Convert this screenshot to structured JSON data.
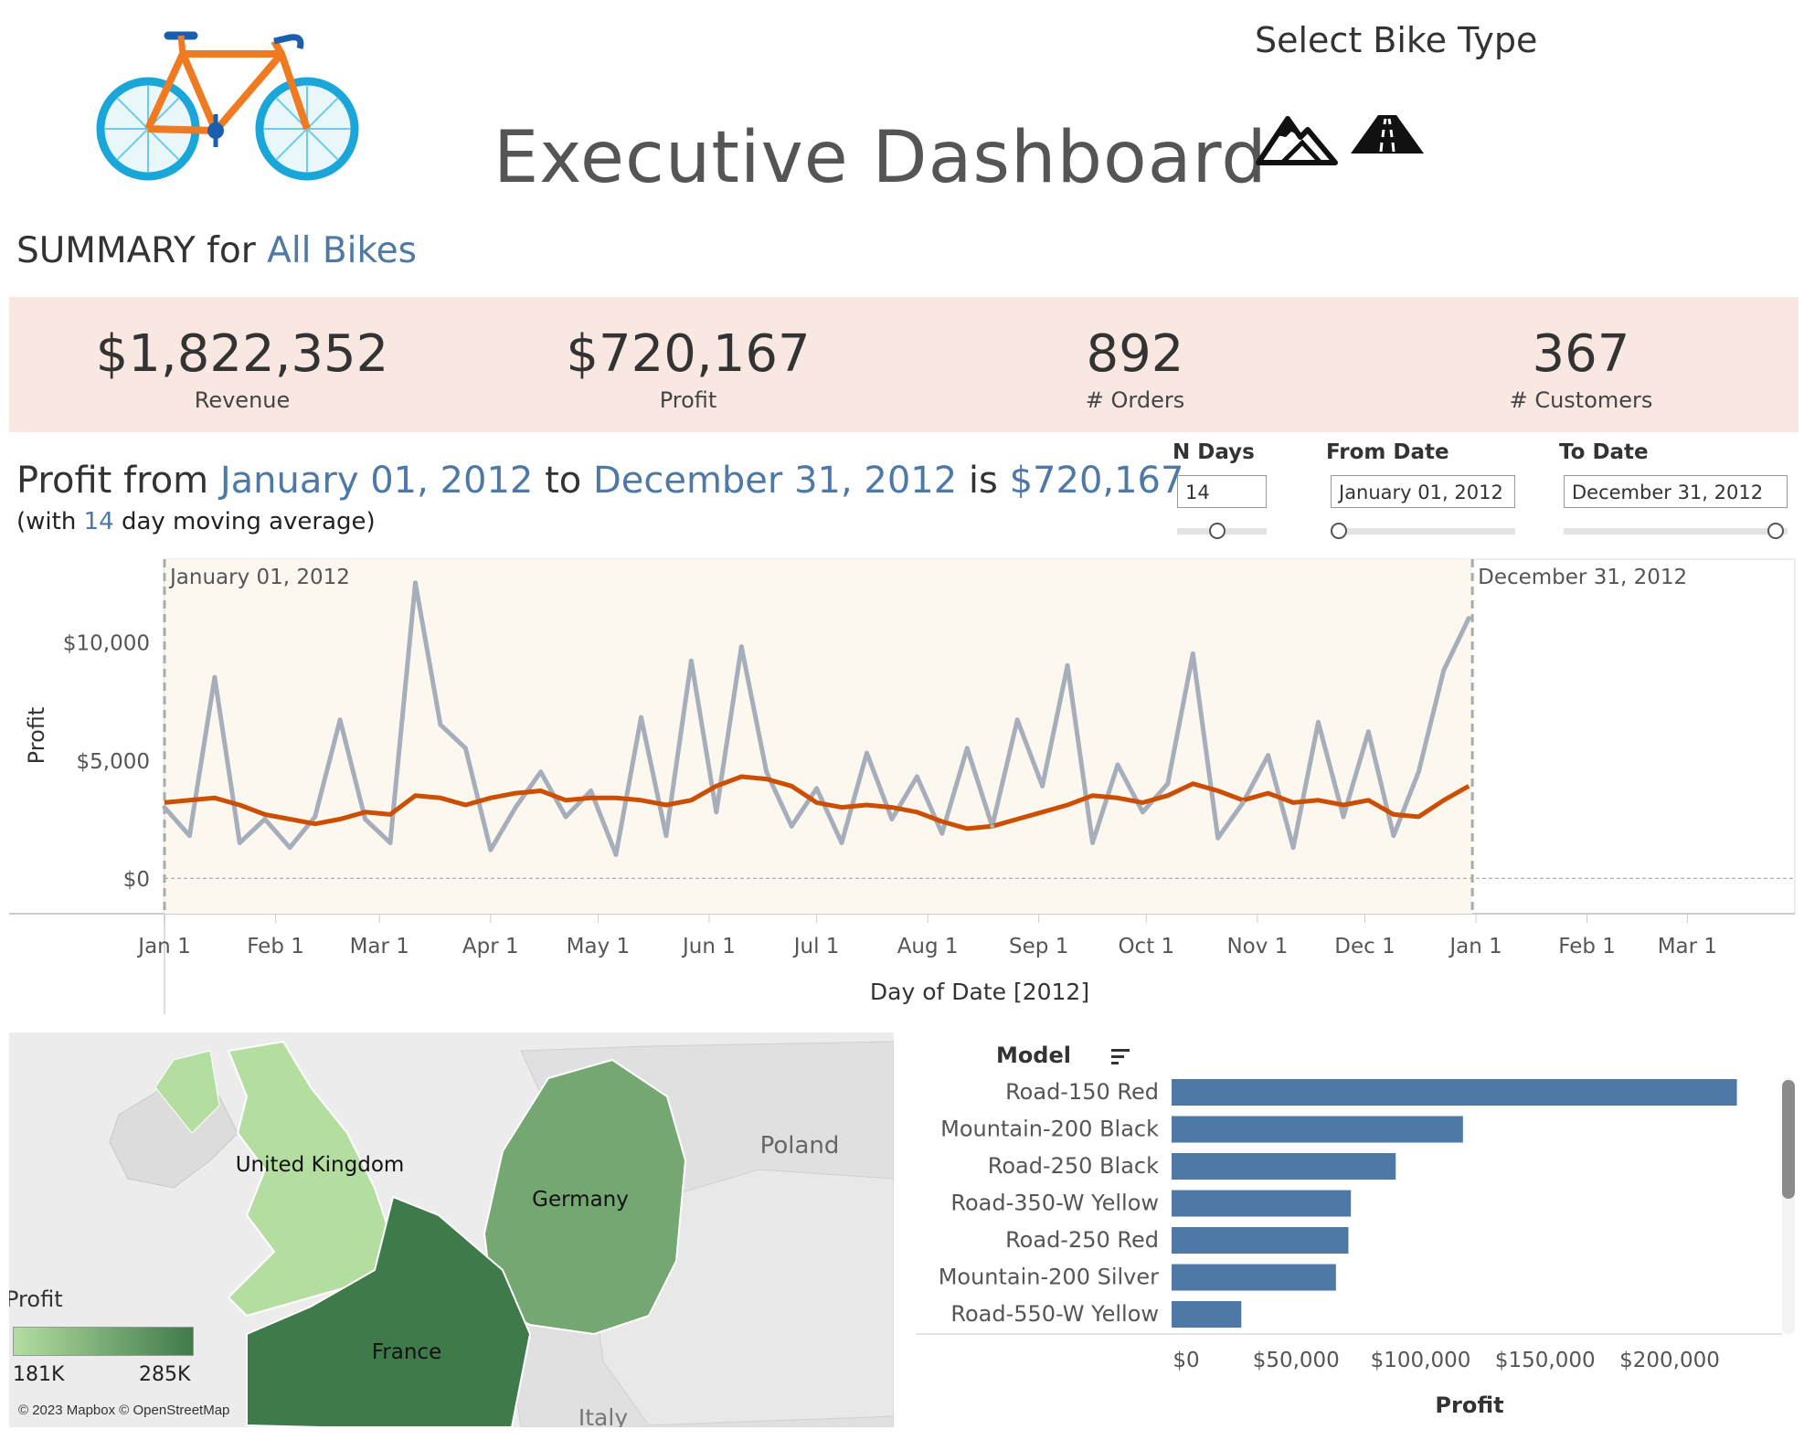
{
  "header": {
    "title": "Executive Dashboard",
    "select_label": "Select Bike Type",
    "summary_prefix": "SUMMARY for",
    "summary_selection": "All Bikes"
  },
  "kpis": [
    {
      "value": "$1,822,352",
      "label": "Revenue"
    },
    {
      "value": "$720,167",
      "label": "Profit"
    },
    {
      "value": "892",
      "label": "# Orders"
    },
    {
      "value": "367",
      "label": "# Customers"
    }
  ],
  "profit_summary": {
    "prefix": "Profit from",
    "from": "January 01, 2012",
    "to_word": "to",
    "to": "December 31, 2012",
    "is_word": "is",
    "total": "$720,167",
    "ma_prefix": "(with",
    "ma_days": "14",
    "ma_suffix": "day moving average)"
  },
  "params": {
    "n_days_label": "N Days",
    "n_days_value": "14",
    "from_label": "From Date",
    "from_value": "January 01, 2012",
    "to_label": "To Date",
    "to_value": "December 31, 2012"
  },
  "colors": {
    "accent": "#4e79a7",
    "kpi_band": "#f9e8e1",
    "profit_line": "#a5aeba",
    "moving_average": "#cc4e00",
    "highlight_region": "#fdf8ef",
    "bar": "#4e79a7",
    "map_low": "#b4dea0",
    "map_high": "#3f7a4b"
  },
  "icons": {
    "logo": "bicycle-icon",
    "mountain": "mountain-icon",
    "road": "road-icon",
    "sort": "sort-descending-icon"
  },
  "chart_data": [
    {
      "type": "line",
      "ylabel": "Profit",
      "xlabel": "Day of Date [2012]",
      "x_ticks": [
        "Jan 1",
        "Feb 1",
        "Mar 1",
        "Apr 1",
        "May 1",
        "Jun 1",
        "Jul 1",
        "Aug 1",
        "Sep 1",
        "Oct 1",
        "Nov 1",
        "Dec 1",
        "Jan 1",
        "Feb 1",
        "Mar 1"
      ],
      "y_ticks": [
        "$10,000",
        "$5,000",
        "$0"
      ],
      "xlim": [
        "2012-01-01",
        "2013-03-31"
      ],
      "ylim": [
        -1500,
        13500
      ],
      "reference_lines": [
        {
          "date": "2012-01-01",
          "label": "January 01, 2012"
        },
        {
          "date": "2012-12-31",
          "label": "December 31, 2012"
        }
      ],
      "series": [
        {
          "x": [
            "2012-01-01",
            "2012-01-08",
            "2012-01-15",
            "2012-01-22",
            "2012-01-29",
            "2012-02-05",
            "2012-02-12",
            "2012-02-19",
            "2012-02-26",
            "2012-03-04",
            "2012-03-11",
            "2012-03-18",
            "2012-03-25",
            "2012-04-01",
            "2012-04-08",
            "2012-04-15",
            "2012-04-22",
            "2012-04-29",
            "2012-05-06",
            "2012-05-13",
            "2012-05-20",
            "2012-05-27",
            "2012-06-03",
            "2012-06-10",
            "2012-06-17",
            "2012-06-24",
            "2012-07-01",
            "2012-07-08",
            "2012-07-15",
            "2012-07-22",
            "2012-07-29",
            "2012-08-05",
            "2012-08-12",
            "2012-08-19",
            "2012-08-26",
            "2012-09-02",
            "2012-09-09",
            "2012-09-16",
            "2012-09-23",
            "2012-09-30",
            "2012-10-07",
            "2012-10-14",
            "2012-10-21",
            "2012-10-28",
            "2012-11-04",
            "2012-11-11",
            "2012-11-18",
            "2012-11-25",
            "2012-12-02",
            "2012-12-09",
            "2012-12-16",
            "2012-12-23",
            "2012-12-30"
          ],
          "values": [
            3000,
            1800,
            8500,
            1500,
            2500,
            1300,
            2600,
            6700,
            2500,
            1500,
            12500,
            6500,
            5500,
            1200,
            3000,
            4500,
            2600,
            3700,
            1000,
            6800,
            1800,
            9200,
            2800,
            9800,
            4500,
            2200,
            3800,
            1500,
            5300,
            2500,
            4300,
            1900,
            5500,
            2200,
            6700,
            3900,
            9000,
            1500,
            4800,
            2800,
            4000,
            9500,
            1700,
            3200,
            5200,
            1300,
            6600,
            2600,
            6200,
            1800,
            4500,
            8800,
            11000
          ]
        },
        {
          "x": [
            "2012-01-01",
            "2012-01-08",
            "2012-01-15",
            "2012-01-22",
            "2012-01-29",
            "2012-02-05",
            "2012-02-12",
            "2012-02-19",
            "2012-02-26",
            "2012-03-04",
            "2012-03-11",
            "2012-03-18",
            "2012-03-25",
            "2012-04-01",
            "2012-04-08",
            "2012-04-15",
            "2012-04-22",
            "2012-04-29",
            "2012-05-06",
            "2012-05-13",
            "2012-05-20",
            "2012-05-27",
            "2012-06-03",
            "2012-06-10",
            "2012-06-17",
            "2012-06-24",
            "2012-07-01",
            "2012-07-08",
            "2012-07-15",
            "2012-07-22",
            "2012-07-29",
            "2012-08-05",
            "2012-08-12",
            "2012-08-19",
            "2012-08-26",
            "2012-09-02",
            "2012-09-09",
            "2012-09-16",
            "2012-09-23",
            "2012-09-30",
            "2012-10-07",
            "2012-10-14",
            "2012-10-21",
            "2012-10-28",
            "2012-11-04",
            "2012-11-11",
            "2012-11-18",
            "2012-11-25",
            "2012-12-02",
            "2012-12-09",
            "2012-12-16",
            "2012-12-23",
            "2012-12-30"
          ],
          "values": [
            3200,
            3300,
            3400,
            3100,
            2700,
            2500,
            2300,
            2500,
            2800,
            2700,
            3500,
            3400,
            3100,
            3400,
            3600,
            3700,
            3300,
            3400,
            3400,
            3300,
            3100,
            3300,
            3900,
            4300,
            4200,
            3900,
            3200,
            3000,
            3100,
            3000,
            2800,
            2400,
            2100,
            2200,
            2500,
            2800,
            3100,
            3500,
            3400,
            3200,
            3500,
            4000,
            3700,
            3300,
            3600,
            3200,
            3300,
            3100,
            3300,
            2700,
            2600,
            3300,
            3900
          ]
        }
      ]
    },
    {
      "type": "bar",
      "orientation": "horizontal",
      "category_header": "Model",
      "xlabel": "Profit",
      "categories": [
        "Road-150 Red",
        "Mountain-200 Black",
        "Road-250 Black",
        "Road-350-W Yellow",
        "Road-250 Red",
        "Mountain-200 Silver",
        "Road-550-W Yellow"
      ],
      "values": [
        227000,
        117000,
        90000,
        72000,
        71000,
        66000,
        28000
      ],
      "xlim": [
        0,
        240000
      ],
      "x_ticks": [
        "$0",
        "$50,000",
        "$100,000",
        "$150,000",
        "$200,000"
      ]
    },
    {
      "type": "map",
      "legend_title": "Profit",
      "legend_min": "181K",
      "legend_max": "285K",
      "attribution": "© 2023 Mapbox © OpenStreetMap",
      "countries": [
        {
          "name": "United Kingdom",
          "profit_level": 0.0
        },
        {
          "name": "Germany",
          "profit_level": 0.55
        },
        {
          "name": "France",
          "profit_level": 1.0
        },
        {
          "name": "Poland",
          "profit_level": null
        },
        {
          "name": "Italy",
          "profit_level": null
        }
      ]
    }
  ]
}
